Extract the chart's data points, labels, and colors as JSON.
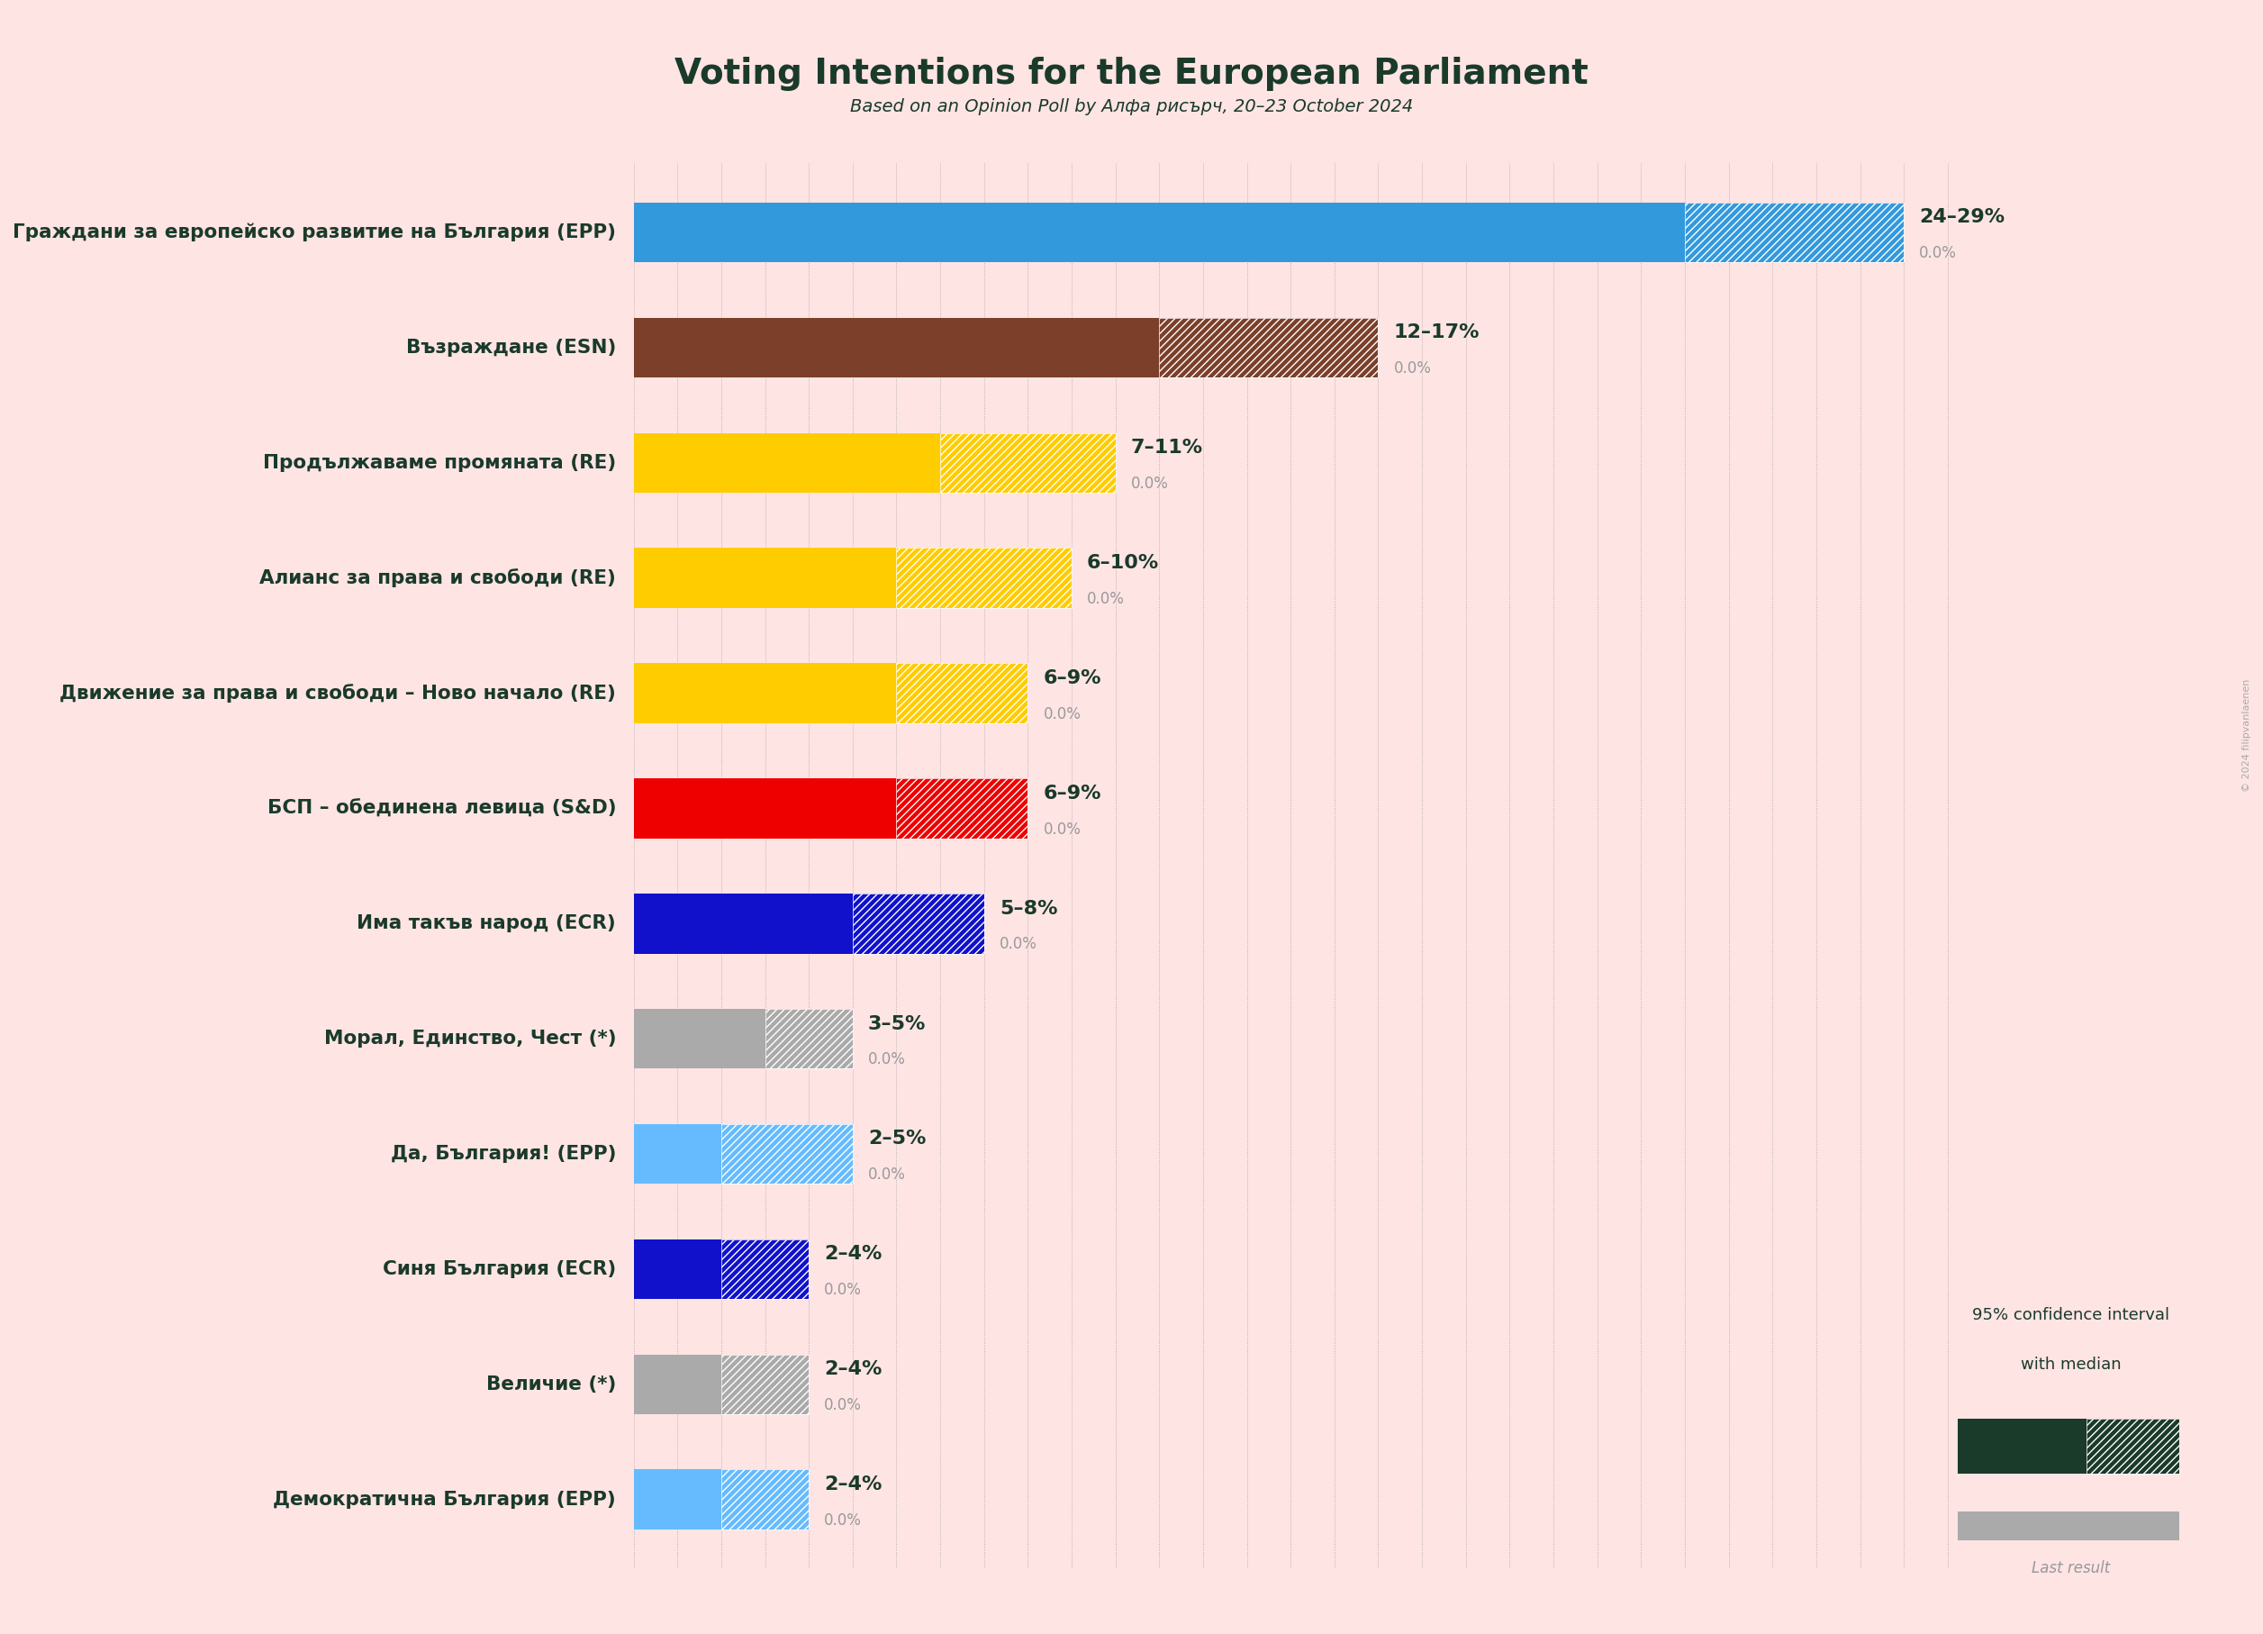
{
  "title": "Voting Intentions for the European Parliament",
  "subtitle": "Based on an Opinion Poll by Алфа рисърч, 20–23 October 2024",
  "background_color": "#FFE4E4",
  "parties": [
    {
      "name": "Граждани за европейско развитие на България (EPP)",
      "low": 24,
      "high": 29,
      "last": 0.0,
      "color": "#3399DD",
      "label": "24–29%"
    },
    {
      "name": "Възраждане (ESN)",
      "low": 12,
      "high": 17,
      "last": 0.0,
      "color": "#7B3F2A",
      "label": "12–17%"
    },
    {
      "name": "Продължаваме промяната (RE)",
      "low": 7,
      "high": 11,
      "last": 0.0,
      "color": "#FFCC00",
      "label": "7–11%"
    },
    {
      "name": "Алианс за права и свободи (RE)",
      "low": 6,
      "high": 10,
      "last": 0.0,
      "color": "#FFCC00",
      "label": "6–10%"
    },
    {
      "name": "Движение за права и свободи – Ново начало (RE)",
      "low": 6,
      "high": 9,
      "last": 0.0,
      "color": "#FFCC00",
      "label": "6–9%"
    },
    {
      "name": "БСП – обединена левица (S&D)",
      "low": 6,
      "high": 9,
      "last": 0.0,
      "color": "#EE0000",
      "label": "6–9%"
    },
    {
      "name": "Има такъв народ (ECR)",
      "low": 5,
      "high": 8,
      "last": 0.0,
      "color": "#1111CC",
      "label": "5–8%"
    },
    {
      "name": "Морал, Единство, Чест (*)",
      "low": 3,
      "high": 5,
      "last": 0.0,
      "color": "#AAAAAA",
      "label": "3–5%"
    },
    {
      "name": "Да, България! (EPP)",
      "low": 2,
      "high": 5,
      "last": 0.0,
      "color": "#66BBFF",
      "label": "2–5%"
    },
    {
      "name": "Синя България (ECR)",
      "low": 2,
      "high": 4,
      "last": 0.0,
      "color": "#1111CC",
      "label": "2–4%"
    },
    {
      "name": "Величие (*)",
      "low": 2,
      "high": 4,
      "last": 0.0,
      "color": "#AAAAAA",
      "label": "2–4%"
    },
    {
      "name": "Демократична България (EPP)",
      "low": 2,
      "high": 4,
      "last": 0.0,
      "color": "#66BBFF",
      "label": "2–4%"
    }
  ],
  "legend_text1": "95% confidence interval",
  "legend_text2": "with median",
  "legend_text3": "Last result",
  "legend_dark_color": "#1A3A2A",
  "legend_gray_color": "#AAAAAA",
  "text_color": "#1A3A2A",
  "copyright_text": "© 2024 filipvanlaenen"
}
